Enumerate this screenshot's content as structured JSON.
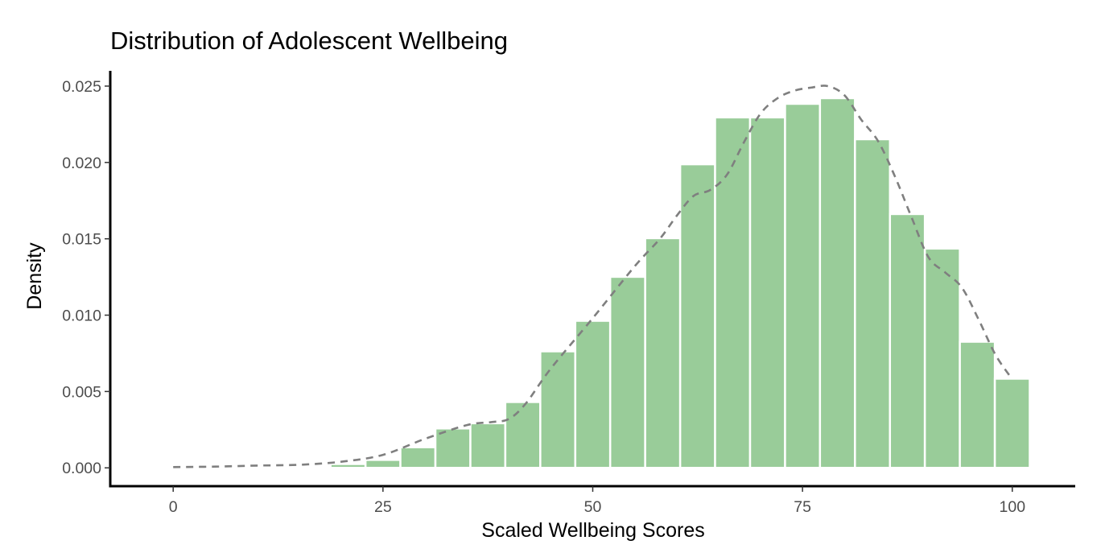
{
  "chart_data": {
    "type": "histogram",
    "title": "Distribution of Adolescent Wellbeing",
    "xlabel": "Scaled Wellbeing Scores",
    "ylabel": "Density",
    "xlim": [
      -7.5,
      107.5
    ],
    "ylim": [
      -0.0012,
      0.026
    ],
    "x_ticks": [
      0,
      25,
      50,
      75,
      100
    ],
    "x_tick_labels": [
      "0",
      "25",
      "50",
      "75",
      "100"
    ],
    "y_ticks": [
      0,
      0.005,
      0.01,
      0.015,
      0.02,
      0.025
    ],
    "y_tick_labels": [
      "0.000",
      "0.005",
      "0.010",
      "0.015",
      "0.020",
      "0.025"
    ],
    "grid": false,
    "bin_width": 4.167,
    "bins": [
      {
        "x0": 18.75,
        "x1": 22.92,
        "density": 0.00025
      },
      {
        "x0": 22.92,
        "x1": 27.08,
        "density": 0.00052
      },
      {
        "x0": 27.08,
        "x1": 31.25,
        "density": 0.00135
      },
      {
        "x0": 31.25,
        "x1": 35.42,
        "density": 0.00258
      },
      {
        "x0": 35.42,
        "x1": 39.58,
        "density": 0.00292
      },
      {
        "x0": 39.58,
        "x1": 43.75,
        "density": 0.00431
      },
      {
        "x0": 43.75,
        "x1": 47.92,
        "density": 0.00763
      },
      {
        "x0": 47.92,
        "x1": 52.08,
        "density": 0.00963
      },
      {
        "x0": 52.08,
        "x1": 56.25,
        "density": 0.01251
      },
      {
        "x0": 56.25,
        "x1": 60.42,
        "density": 0.01504
      },
      {
        "x0": 60.42,
        "x1": 64.58,
        "density": 0.01988
      },
      {
        "x0": 64.58,
        "x1": 68.75,
        "density": 0.02295
      },
      {
        "x0": 68.75,
        "x1": 72.92,
        "density": 0.02295
      },
      {
        "x0": 72.92,
        "x1": 77.08,
        "density": 0.02384
      },
      {
        "x0": 77.08,
        "x1": 81.25,
        "density": 0.02421
      },
      {
        "x0": 81.25,
        "x1": 85.42,
        "density": 0.02152
      },
      {
        "x0": 85.42,
        "x1": 89.58,
        "density": 0.01662
      },
      {
        "x0": 89.58,
        "x1": 93.75,
        "density": 0.01436
      },
      {
        "x0": 93.75,
        "x1": 97.92,
        "density": 0.00826
      },
      {
        "x0": 97.92,
        "x1": 102.08,
        "density": 0.00584
      }
    ],
    "density_curve": {
      "style": "dashed",
      "x": [
        0,
        5,
        10,
        15,
        20,
        25,
        30,
        35,
        38,
        40,
        42,
        45,
        50,
        55,
        58,
        60,
        62,
        64,
        66,
        68,
        70,
        72,
        74,
        76,
        78,
        80,
        82,
        84,
        86,
        88,
        90,
        92,
        94,
        96,
        98,
        100
      ],
      "y": [
        5e-05,
        8e-05,
        0.00015,
        0.0002,
        0.0004,
        0.00085,
        0.0019,
        0.0028,
        0.003,
        0.0032,
        0.0042,
        0.0065,
        0.0098,
        0.0132,
        0.015,
        0.0165,
        0.0178,
        0.0182,
        0.0192,
        0.0213,
        0.0232,
        0.0242,
        0.0247,
        0.0249,
        0.025,
        0.0244,
        0.0228,
        0.0214,
        0.0191,
        0.0164,
        0.0138,
        0.0128,
        0.0118,
        0.0097,
        0.0074,
        0.0058
      ]
    },
    "colors": {
      "bar_fill": "#99cc99",
      "density_line": "#7f7f7f",
      "axis": "#000000",
      "tick_label": "#4d4d4d"
    }
  }
}
